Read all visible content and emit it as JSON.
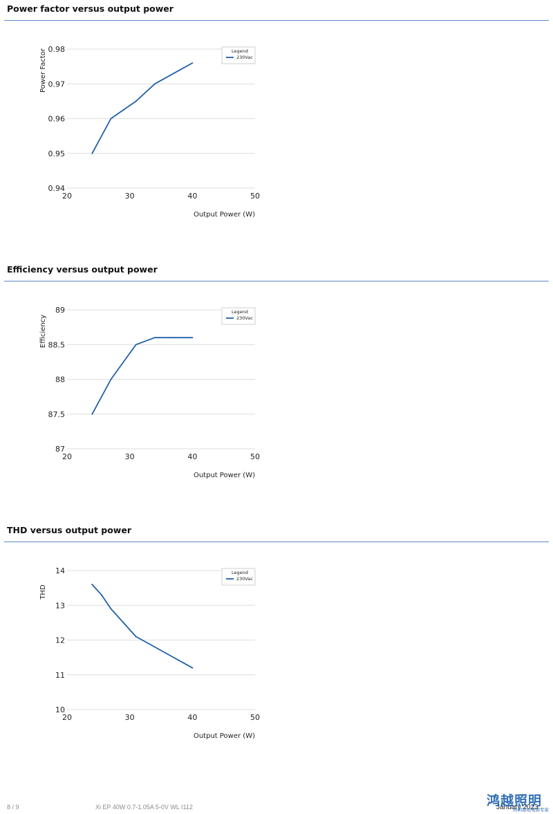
{
  "sections": [
    {
      "title": "Power factor versus output power"
    },
    {
      "title": "Efficiency versus output power"
    },
    {
      "title": "THD versus output power"
    }
  ],
  "chart_data": [
    {
      "type": "line",
      "title": "Power factor versus output power",
      "xlabel": "Output Power (W)",
      "ylabel": "Power Factor",
      "xlim": [
        20,
        50
      ],
      "ylim": [
        0.94,
        0.98
      ],
      "xticks": [
        "20",
        "30",
        "40",
        "50"
      ],
      "yticks": [
        "0.98",
        "0.97",
        "0.96",
        "0.95",
        "0.94"
      ],
      "grid": true,
      "legend": {
        "title": "Legend",
        "placement": "top-right"
      },
      "series": [
        {
          "name": "230Vac",
          "color": "#1f5fa8",
          "x": [
            24,
            27,
            29,
            31,
            34,
            37,
            40
          ],
          "y": [
            0.95,
            0.96,
            0.9625,
            0.965,
            0.97,
            0.973,
            0.976
          ]
        }
      ]
    },
    {
      "type": "line",
      "title": "Efficiency versus output power",
      "xlabel": "Output Power (W)",
      "ylabel": "Efficiency",
      "xlim": [
        20,
        50
      ],
      "ylim": [
        87,
        89
      ],
      "xticks": [
        "20",
        "30",
        "40",
        "50"
      ],
      "yticks": [
        "89",
        "88.5",
        "88",
        "87.5",
        "87"
      ],
      "grid": true,
      "legend": {
        "title": "Legend",
        "placement": "top-right"
      },
      "series": [
        {
          "name": "230Vac",
          "color": "#1f5fa8",
          "x": [
            24,
            27,
            29,
            31,
            34,
            37,
            40
          ],
          "y": [
            87.5,
            88.0,
            88.25,
            88.5,
            88.6,
            88.6,
            88.6
          ]
        }
      ]
    },
    {
      "type": "line",
      "title": "THD versus output power",
      "xlabel": "Output Power (W)",
      "ylabel": "THD",
      "xlim": [
        20,
        50
      ],
      "ylim": [
        10,
        14
      ],
      "xticks": [
        "20",
        "30",
        "40",
        "50"
      ],
      "yticks": [
        "14",
        "13",
        "12",
        "11",
        "10"
      ],
      "grid": true,
      "legend": {
        "title": "Legend",
        "placement": "top-right"
      },
      "series": [
        {
          "name": "230Vac",
          "color": "#1f5fa8",
          "x": [
            24,
            25.5,
            27,
            29,
            31,
            34,
            37,
            40
          ],
          "y": [
            13.6,
            13.3,
            12.9,
            12.5,
            12.1,
            11.8,
            11.5,
            11.2
          ]
        }
      ]
    }
  ],
  "footer": {
    "page": "8 / 9",
    "product": "Xi EP 40W 0.7-1.05A 5-0V WL I112",
    "date": "January 2023",
    "watermark_main": "鸿越照明",
    "watermark_sub": "照明驱动电源专家"
  }
}
